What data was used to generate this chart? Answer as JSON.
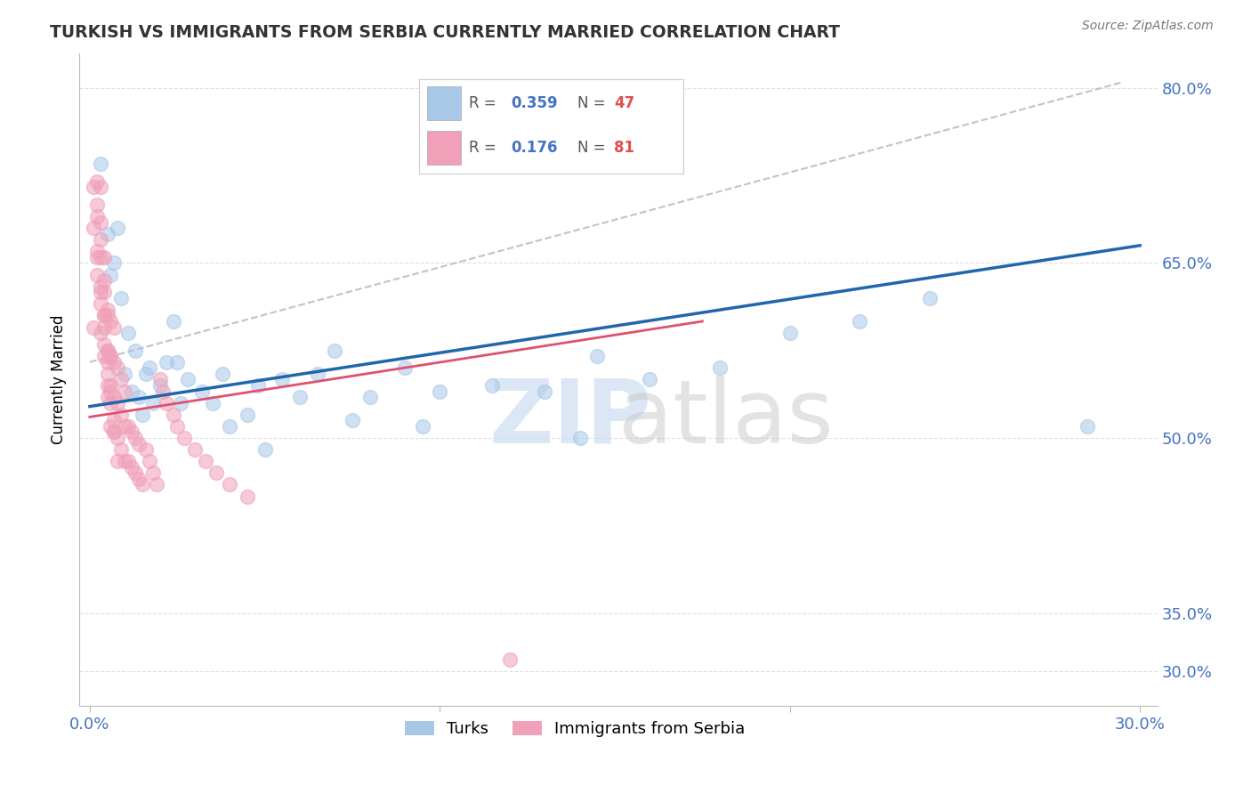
{
  "title": "TURKISH VS IMMIGRANTS FROM SERBIA CURRENTLY MARRIED CORRELATION CHART",
  "source": "Source: ZipAtlas.com",
  "ylabel": "Currently Married",
  "legend_label1": "Turks",
  "legend_label2": "Immigrants from Serbia",
  "r1_text": "0.359",
  "n1_text": "47",
  "r2_text": "0.176",
  "n2_text": "81",
  "color_blue_dot": "#a8c8e8",
  "color_pink_dot": "#f0a0b8",
  "color_blue_line": "#2166ac",
  "color_pink_line": "#e05070",
  "color_ref_line": "#c8b8b8",
  "color_axis_text": "#4472c4",
  "color_legend_text": "#4472c4",
  "xlim": [
    -0.003,
    0.305
  ],
  "ylim": [
    0.27,
    0.83
  ],
  "yticks": [
    0.3,
    0.35,
    0.5,
    0.65,
    0.8
  ],
  "ytick_labels": [
    "30.0%",
    "35.0%",
    "50.0%",
    "65.0%",
    "80.0%"
  ],
  "xticks": [
    0.0,
    0.1,
    0.2,
    0.3
  ],
  "xtick_labels": [
    "0.0%",
    "",
    "",
    "30.0%"
  ],
  "blue_line_x": [
    0.0,
    0.3
  ],
  "blue_line_y": [
    0.527,
    0.665
  ],
  "pink_line_x": [
    0.0,
    0.175
  ],
  "pink_line_y": [
    0.518,
    0.6
  ],
  "ref_line_x": [
    0.0,
    0.295
  ],
  "ref_line_y": [
    0.565,
    0.805
  ],
  "turks_x": [
    0.003,
    0.005,
    0.006,
    0.008,
    0.009,
    0.01,
    0.012,
    0.013,
    0.014,
    0.015,
    0.016,
    0.018,
    0.02,
    0.022,
    0.024,
    0.026,
    0.028,
    0.032,
    0.038,
    0.04,
    0.045,
    0.048,
    0.055,
    0.06,
    0.065,
    0.07,
    0.08,
    0.09,
    0.1,
    0.115,
    0.13,
    0.145,
    0.16,
    0.18,
    0.2,
    0.22,
    0.007,
    0.011,
    0.017,
    0.025,
    0.035,
    0.05,
    0.075,
    0.095,
    0.14,
    0.24,
    0.285
  ],
  "turks_y": [
    0.735,
    0.675,
    0.64,
    0.68,
    0.62,
    0.555,
    0.54,
    0.575,
    0.535,
    0.52,
    0.555,
    0.53,
    0.545,
    0.565,
    0.6,
    0.53,
    0.55,
    0.54,
    0.555,
    0.51,
    0.52,
    0.545,
    0.55,
    0.535,
    0.555,
    0.575,
    0.535,
    0.56,
    0.54,
    0.545,
    0.54,
    0.57,
    0.55,
    0.56,
    0.59,
    0.6,
    0.65,
    0.59,
    0.56,
    0.565,
    0.53,
    0.49,
    0.515,
    0.51,
    0.5,
    0.62,
    0.51
  ],
  "serbia_x": [
    0.001,
    0.001,
    0.002,
    0.002,
    0.002,
    0.003,
    0.003,
    0.003,
    0.003,
    0.004,
    0.004,
    0.004,
    0.004,
    0.004,
    0.005,
    0.005,
    0.005,
    0.005,
    0.005,
    0.006,
    0.006,
    0.006,
    0.006,
    0.007,
    0.007,
    0.007,
    0.007,
    0.008,
    0.008,
    0.008,
    0.009,
    0.009,
    0.009,
    0.01,
    0.01,
    0.01,
    0.011,
    0.011,
    0.012,
    0.012,
    0.013,
    0.013,
    0.014,
    0.014,
    0.015,
    0.016,
    0.017,
    0.018,
    0.019,
    0.02,
    0.021,
    0.022,
    0.024,
    0.025,
    0.027,
    0.03,
    0.033,
    0.036,
    0.04,
    0.045,
    0.001,
    0.002,
    0.003,
    0.003,
    0.004,
    0.005,
    0.006,
    0.007,
    0.008,
    0.002,
    0.003,
    0.004,
    0.005,
    0.006,
    0.007,
    0.002,
    0.003,
    0.004,
    0.005,
    0.006,
    0.12
  ],
  "serbia_y": [
    0.68,
    0.715,
    0.655,
    0.69,
    0.72,
    0.625,
    0.655,
    0.685,
    0.715,
    0.595,
    0.625,
    0.655,
    0.57,
    0.605,
    0.545,
    0.575,
    0.61,
    0.535,
    0.565,
    0.51,
    0.54,
    0.57,
    0.6,
    0.505,
    0.535,
    0.565,
    0.595,
    0.5,
    0.53,
    0.56,
    0.49,
    0.52,
    0.55,
    0.48,
    0.51,
    0.54,
    0.48,
    0.51,
    0.475,
    0.505,
    0.47,
    0.5,
    0.465,
    0.495,
    0.46,
    0.49,
    0.48,
    0.47,
    0.46,
    0.55,
    0.54,
    0.53,
    0.52,
    0.51,
    0.5,
    0.49,
    0.48,
    0.47,
    0.46,
    0.45,
    0.595,
    0.64,
    0.59,
    0.615,
    0.58,
    0.555,
    0.53,
    0.505,
    0.48,
    0.66,
    0.63,
    0.605,
    0.575,
    0.545,
    0.515,
    0.7,
    0.67,
    0.635,
    0.605,
    0.57,
    0.31
  ]
}
